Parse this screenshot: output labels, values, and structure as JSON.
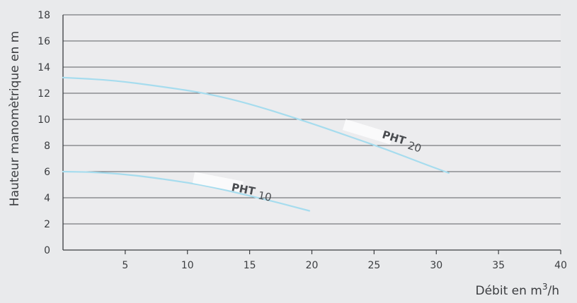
{
  "chart_data": {
    "type": "line",
    "xlabel": "Débit en m",
    "xlabel_sup": "3",
    "xlabel_suffix": "/h",
    "ylabel": "Hauteur manomètrique en m",
    "xlim": [
      0,
      40
    ],
    "ylim": [
      0,
      18
    ],
    "x_ticks": [
      "5",
      "10",
      "15",
      "20",
      "25",
      "30",
      "35",
      "40"
    ],
    "y_ticks": [
      "0",
      "2",
      "4",
      "6",
      "8",
      "10",
      "12",
      "14",
      "16",
      "18"
    ],
    "grid": "horizontal",
    "line_color": "#a6dcee",
    "series": [
      {
        "label_main": "PHT",
        "label_sub": "10",
        "points": [
          [
            0,
            6.0
          ],
          [
            3,
            5.95
          ],
          [
            6,
            5.7
          ],
          [
            9,
            5.3
          ],
          [
            11,
            5.0
          ],
          [
            13,
            4.6
          ],
          [
            15,
            4.15
          ],
          [
            17,
            3.7
          ],
          [
            19.8,
            3.0
          ]
        ]
      },
      {
        "label_main": "PHT",
        "label_sub": "20",
        "points": [
          [
            0,
            13.2
          ],
          [
            4,
            13.0
          ],
          [
            8,
            12.5
          ],
          [
            11.5,
            12.0
          ],
          [
            15,
            11.2
          ],
          [
            19.5,
            9.85
          ],
          [
            23,
            8.7
          ],
          [
            26,
            7.7
          ],
          [
            29,
            6.6
          ],
          [
            31,
            5.9
          ]
        ]
      }
    ]
  }
}
